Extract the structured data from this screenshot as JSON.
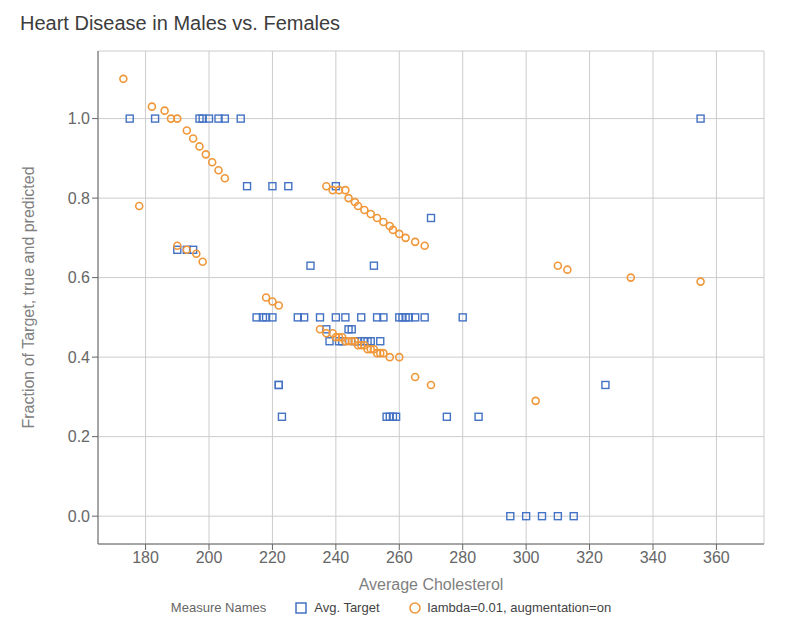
{
  "chart_data": {
    "type": "scatter",
    "title": "Heart Disease in Males vs. Females",
    "x_label": "Average Cholesterol",
    "y_label": "Fraction of Target, true and predicted",
    "legend_title": "Measure Names",
    "xlim": [
      165,
      375
    ],
    "ylim": [
      -0.07,
      1.17
    ],
    "xticks": [
      180,
      200,
      220,
      240,
      260,
      280,
      300,
      320,
      340,
      360
    ],
    "yticks": [
      {
        "value": 0.0,
        "label": "0.0"
      },
      0.2,
      0.4,
      0.6,
      0.8,
      {
        "value": 1.0,
        "label": "1.0"
      }
    ],
    "grid": true,
    "legend": "bottom",
    "series": [
      {
        "name": "Avg. Target",
        "color": "#4472c4",
        "marker": "square",
        "x": [
          175,
          183,
          190,
          193,
          195,
          197,
          198,
          200,
          203,
          205,
          210,
          212,
          215,
          217,
          218,
          220,
          220,
          222,
          222,
          223,
          225,
          228,
          230,
          232,
          235,
          237,
          238,
          240,
          240,
          241,
          242,
          243,
          244,
          245,
          246,
          247,
          248,
          249,
          250,
          251,
          252,
          253,
          254,
          255,
          256,
          257,
          258,
          259,
          260,
          261,
          262,
          263,
          265,
          268,
          270,
          275,
          280,
          285,
          295,
          300,
          305,
          310,
          315,
          325,
          355
        ],
        "values": [
          1.0,
          1.0,
          0.67,
          0.67,
          0.67,
          1.0,
          1.0,
          1.0,
          1.0,
          1.0,
          1.0,
          0.83,
          0.5,
          0.5,
          0.5,
          0.83,
          0.5,
          0.33,
          0.33,
          0.25,
          0.83,
          0.5,
          0.5,
          0.63,
          0.5,
          0.47,
          0.44,
          0.83,
          0.5,
          0.44,
          0.44,
          0.5,
          0.47,
          0.47,
          0.44,
          0.44,
          0.5,
          0.44,
          0.44,
          0.44,
          0.63,
          0.5,
          0.44,
          0.5,
          0.25,
          0.25,
          0.25,
          0.25,
          0.5,
          0.5,
          0.5,
          0.5,
          0.5,
          0.5,
          0.75,
          0.25,
          0.5,
          0.25,
          0.0,
          0.0,
          0.0,
          0.0,
          0.0,
          0.33,
          1.0
        ]
      },
      {
        "name": "lambda=0.01, augmentation=on",
        "color": "#f0973a",
        "marker": "circle",
        "x": [
          173,
          182,
          186,
          188,
          190,
          193,
          195,
          197,
          199,
          201,
          203,
          205,
          178,
          190,
          193,
          196,
          198,
          218,
          220,
          222,
          237,
          239,
          241,
          243,
          244,
          246,
          247,
          249,
          251,
          253,
          255,
          257,
          258,
          260,
          262,
          265,
          268,
          235,
          237,
          239,
          240,
          241,
          242,
          243,
          244,
          245,
          246,
          247,
          248,
          249,
          250,
          251,
          252,
          253,
          254,
          255,
          257,
          260,
          265,
          270,
          310,
          313,
          333,
          355,
          303
        ],
        "values": [
          1.1,
          1.03,
          1.02,
          1.0,
          1.0,
          0.97,
          0.95,
          0.93,
          0.91,
          0.89,
          0.87,
          0.85,
          0.78,
          0.68,
          0.67,
          0.66,
          0.64,
          0.55,
          0.54,
          0.53,
          0.83,
          0.82,
          0.82,
          0.82,
          0.8,
          0.79,
          0.78,
          0.77,
          0.76,
          0.75,
          0.74,
          0.73,
          0.72,
          0.71,
          0.7,
          0.69,
          0.68,
          0.47,
          0.46,
          0.46,
          0.45,
          0.45,
          0.45,
          0.44,
          0.44,
          0.44,
          0.44,
          0.43,
          0.43,
          0.43,
          0.42,
          0.42,
          0.42,
          0.41,
          0.41,
          0.41,
          0.4,
          0.4,
          0.35,
          0.33,
          0.63,
          0.62,
          0.6,
          0.59,
          0.29
        ]
      }
    ]
  }
}
